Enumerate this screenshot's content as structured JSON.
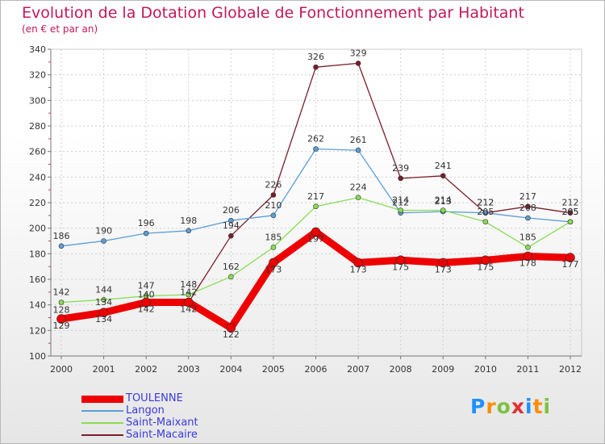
{
  "chart_data": {
    "type": "line",
    "title": "Evolution de la Dotation Globale de Fonctionnement par Habitant",
    "subtitle": "(en € et par an)",
    "xlabel": "",
    "ylabel": "",
    "x": [
      "2000",
      "2001",
      "2002",
      "2003",
      "2004",
      "2005",
      "2006",
      "2007",
      "2008",
      "2009",
      "2010",
      "2011",
      "2012"
    ],
    "ylim": [
      100,
      340
    ],
    "yticks": [
      100,
      120,
      140,
      160,
      180,
      200,
      220,
      240,
      260,
      280,
      300,
      320,
      340
    ],
    "grid": true,
    "series": [
      {
        "name": "TOULENNE",
        "color": "#ee0000",
        "values": [
          129,
          134,
          142,
          142,
          122,
          173,
          197,
          173,
          175,
          173,
          175,
          178,
          177
        ]
      },
      {
        "name": "Langon",
        "color": "#5b9ed6",
        "values": [
          186,
          190,
          196,
          198,
          206,
          210,
          262,
          261,
          212,
          213,
          212,
          208,
          205
        ]
      },
      {
        "name": "Saint-Maixant",
        "color": "#88dd55",
        "values": [
          142,
          144,
          147,
          148,
          162,
          185,
          217,
          224,
          214,
          214,
          205,
          185,
          205
        ]
      },
      {
        "name": "Saint-Macaire",
        "color": "#7a1f2a",
        "values": [
          128,
          134,
          140,
          142,
          194,
          226,
          326,
          329,
          239,
          241,
          212,
          217,
          212
        ]
      }
    ]
  },
  "legend": {
    "items": [
      {
        "label": "TOULENNE"
      },
      {
        "label": "Langon"
      },
      {
        "label": "Saint-Maixant"
      },
      {
        "label": "Saint-Macaire"
      }
    ]
  },
  "logo": {
    "letters": [
      "P",
      "r",
      "o",
      "x",
      "i",
      "t",
      "i"
    ],
    "colors": [
      "#1e90ff",
      "#ff8c00",
      "#7cc242",
      "#e03030",
      "#1e90ff",
      "#ff8c00",
      "#7cc242"
    ]
  }
}
